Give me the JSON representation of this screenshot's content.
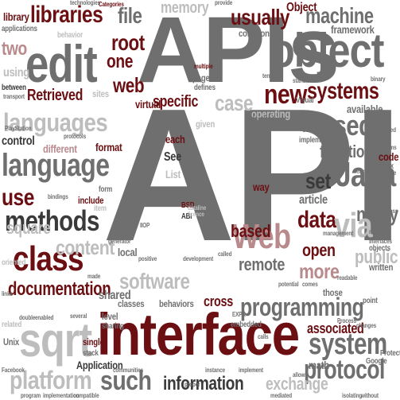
{
  "colors": {
    "maroon": "#6b0f12",
    "gray": "#6f6f6f",
    "light": "#bdbdbd",
    "rose": "#b98a8c",
    "dark": "#3a3a3a"
  },
  "words": {
    "api_big": "API",
    "apis": "APIs",
    "interface": "interface",
    "object": "object",
    "edit": "edit",
    "language": "language",
    "languages": "languages",
    "methods": "methods",
    "class": "class",
    "sqrt": "sqrt",
    "platform": "platform",
    "programming": "programming",
    "system": "system",
    "protocol": "protocol",
    "such": "such",
    "information": "information",
    "exchange": "exchange",
    "java": "Java",
    "libraries": "libraries",
    "usually": "usually",
    "machine": "machine",
    "new": "new",
    "systems": "systems",
    "used": "used",
    "function": "function",
    "set": "set",
    "data": "data",
    "many": "many",
    "via": "via",
    "web_big": "Web",
    "more": "more",
    "public": "public",
    "remote": "remote",
    "based": "based",
    "open": "open",
    "use": "use",
    "documentation": "documentation",
    "content": "content",
    "software": "software",
    "retrieved": "Retrieved",
    "control": "control",
    "file": "file",
    "root": "root",
    "one": "one",
    "two": "two",
    "web": "web",
    "specific": "specific",
    "case": "case",
    "square": "square",
    "memory": "memory",
    "object_small": "Object",
    "both": "both",
    "associated": "associated",
    "cross": "cross",
    "shared": "shared",
    "code": "code",
    "article": "article",
    "framework": "framework",
    "library": "library",
    "applications": "applications",
    "behavior": "behavior",
    "common": "common",
    "example": "example",
    "using": "using",
    "between": "between",
    "standard": "standard",
    "operating": "operating",
    "available": "available",
    "virtual": "virtual",
    "different": "different",
    "format": "format",
    "each": "each",
    "see": "See",
    "list": "List",
    "include": "include",
    "way": "way",
    "given": "given",
    "local": "local",
    "classes": "classes",
    "behaviors": "behaviors",
    "single": "single",
    "application": "Application",
    "stack": "stack",
    "unix": "Unix",
    "related": "related",
    "math": "math",
    "service": "service",
    "implemented": "implemented",
    "various": "various",
    "oracle": "Oracle",
    "written": "written",
    "interfaces": "interfaces",
    "objects": "objects",
    "those": "those",
    "sites": "sites",
    "pages": "pages",
    "defines": "defines",
    "multiple": "multiple",
    "item": "item",
    "form": "form",
    "general": "general",
    "message": "message",
    "bsd": "BSD",
    "abi": "ABI",
    "calls": "calls",
    "point": "point",
    "google": "Google",
    "process": "Process",
    "changes": "changes",
    "allows": "allows",
    "embedded": "embedded",
    "level": "level",
    "sharing": "sharing",
    "communities": "communities",
    "instance": "instance",
    "implement": "implement",
    "mediated": "mediated",
    "implementation": "implementation",
    "compatible": "compatible",
    "program": "program",
    "facebook": "Facebook",
    "protected": "Protected",
    "model": "model",
    "links": "links",
    "exchanged": "exchanged",
    "binary": "binary",
    "technologies": "technologies",
    "categories": "Categories",
    "terms": "terms",
    "proper": "proper",
    "development": "development",
    "defined": "defined",
    "simple": "Simple",
    "posix": "POSIX",
    "visual": "Visual",
    "programs": "programs",
    "success": "success",
    "readable": "readable",
    "management": "management",
    "potential": "potential",
    "comes": "comes",
    "without": "without",
    "isolating": "isolating",
    "enabled": "enabled",
    "several": "several",
    "double": "double",
    "made": "made",
    "oriented": "oriented",
    "generator": "generator",
    "positive": "positive",
    "standard2": "Standard",
    "provide": "provide",
    "transport": "transport",
    "playstation": "PlayStation",
    "protocols": "protocols",
    "bindings": "bindings",
    "manager": "manager",
    "mashups": "mashups",
    "iiop": "IIOP",
    "expr": "EXPR",
    "generated": "generated",
    "hacking": "hacking",
    "resource": "resource",
    "elements": "elements",
    "rpc": "RPC",
    "ruby": "Ruby",
    "called": "called",
    "dataline": "dataline",
    "licence": "licence"
  }
}
